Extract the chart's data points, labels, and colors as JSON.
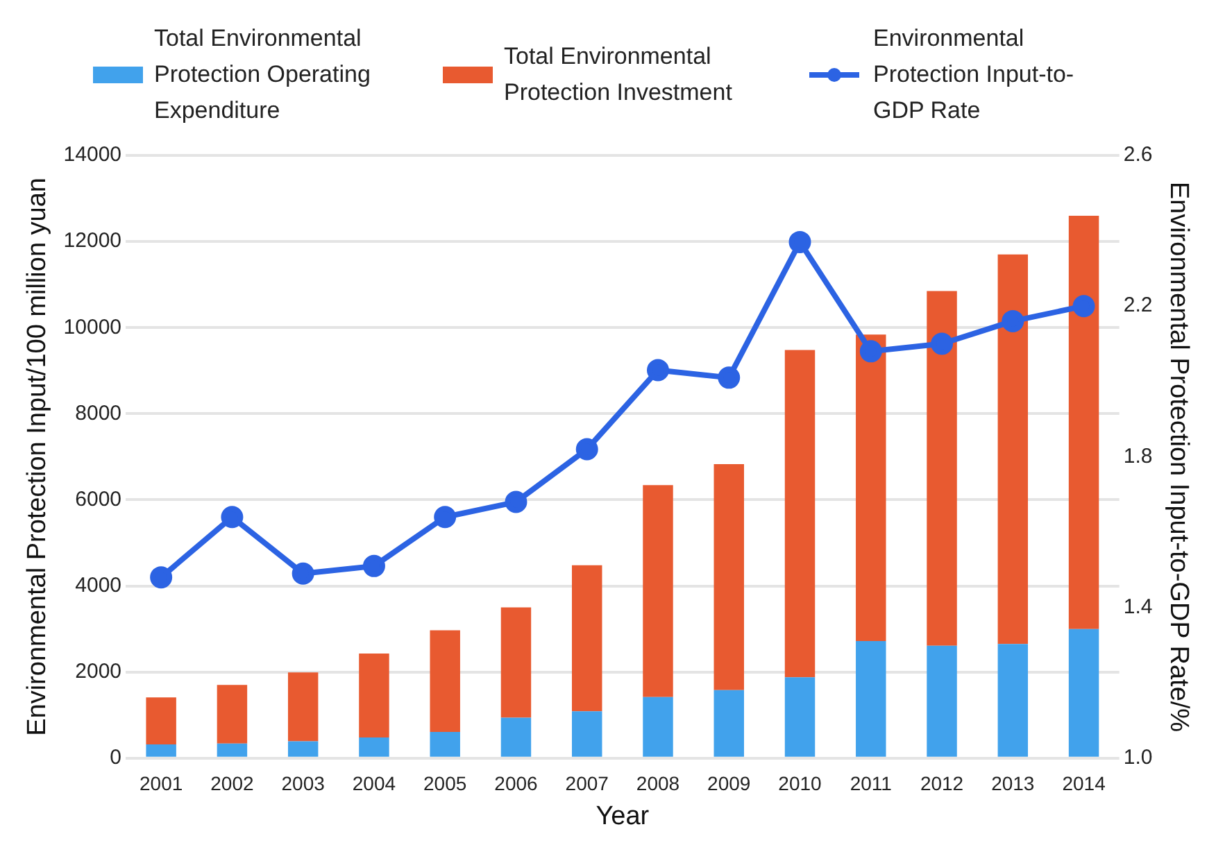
{
  "chart_data": {
    "type": "bar",
    "stacked": true,
    "xlabel": "Year",
    "ylabel": "Environmental Protection Input/100 million yuan",
    "y2label": "Environmental Protection Input-to-GDP Rate/%",
    "categories": [
      "2001",
      "2002",
      "2003",
      "2004",
      "2005",
      "2006",
      "2007",
      "2008",
      "2009",
      "2010",
      "2011",
      "2012",
      "2013",
      "2014"
    ],
    "series": [
      {
        "name": "Total Environmental Protection Operating Expenditure",
        "color": "#41a2ec",
        "values": [
          320,
          340,
          390,
          480,
          610,
          940,
          1090,
          1420,
          1580,
          1880,
          2720,
          2610,
          2650,
          3000
        ]
      },
      {
        "name": "Total Environmental Protection Investment",
        "color": "#e85a30",
        "values": [
          1090,
          1360,
          1600,
          1950,
          2360,
          2560,
          3390,
          4920,
          5250,
          7600,
          7120,
          8240,
          9050,
          9600
        ]
      },
      {
        "name": "Environmental Protection Input-to-GDP Rate",
        "type": "line",
        "axis": "y2",
        "color": "#2c63e3",
        "marker": "circle",
        "values": [
          1.48,
          1.64,
          1.49,
          1.51,
          1.64,
          1.68,
          1.82,
          2.03,
          2.01,
          2.37,
          2.08,
          2.1,
          2.16,
          2.2
        ]
      }
    ],
    "ylim": [
      0,
      14000
    ],
    "yticks": [
      0,
      2000,
      4000,
      6000,
      8000,
      10000,
      12000,
      14000
    ],
    "y2lim": [
      1.0,
      2.6
    ],
    "y2ticks": [
      {
        "value": 1.0,
        "label": "1.0"
      },
      {
        "value": 1.4,
        "label": "1.4"
      },
      {
        "value": 1.8,
        "label": "1.8"
      },
      {
        "value": 2.2,
        "label": "2.2"
      },
      {
        "value": 2.6,
        "label": "2.6"
      }
    ],
    "grid": "y",
    "legend": "top"
  }
}
